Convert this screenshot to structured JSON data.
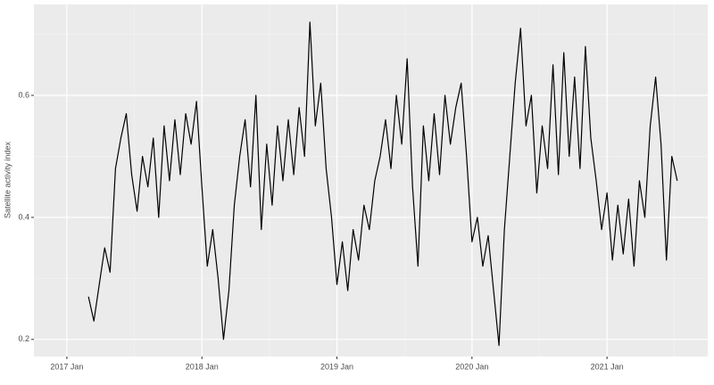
{
  "chart_data": {
    "type": "line",
    "ylabel": "Satellite activity index",
    "x": [
      2017.16,
      2017.2,
      2017.24,
      2017.28,
      2017.32,
      2017.36,
      2017.4,
      2017.44,
      2017.48,
      2017.52,
      2017.56,
      2017.6,
      2017.64,
      2017.68,
      2017.72,
      2017.76,
      2017.8,
      2017.84,
      2017.88,
      2017.92,
      2017.96,
      2018.0,
      2018.04,
      2018.08,
      2018.12,
      2018.16,
      2018.2,
      2018.24,
      2018.28,
      2018.32,
      2018.36,
      2018.4,
      2018.44,
      2018.48,
      2018.52,
      2018.56,
      2018.6,
      2018.64,
      2018.68,
      2018.72,
      2018.76,
      2018.8,
      2018.84,
      2018.88,
      2018.92,
      2018.96,
      2019.0,
      2019.04,
      2019.08,
      2019.12,
      2019.16,
      2019.2,
      2019.24,
      2019.28,
      2019.32,
      2019.36,
      2019.4,
      2019.44,
      2019.48,
      2019.52,
      2019.56,
      2019.6,
      2019.64,
      2019.68,
      2019.72,
      2019.76,
      2019.8,
      2019.84,
      2019.88,
      2019.92,
      2019.96,
      2020.0,
      2020.04,
      2020.08,
      2020.12,
      2020.16,
      2020.2,
      2020.24,
      2020.28,
      2020.32,
      2020.36,
      2020.4,
      2020.44,
      2020.48,
      2020.52,
      2020.56,
      2020.6,
      2020.64,
      2020.68,
      2020.72,
      2020.76,
      2020.8,
      2020.84,
      2020.88,
      2020.92,
      2020.96,
      2021.0,
      2021.04,
      2021.08,
      2021.12,
      2021.16,
      2021.2,
      2021.24,
      2021.28,
      2021.32,
      2021.36,
      2021.4,
      2021.44,
      2021.48,
      2021.52
    ],
    "series": [
      {
        "color": "#000000",
        "values": [
          0.27,
          0.23,
          0.29,
          0.35,
          0.31,
          0.48,
          0.53,
          0.57,
          0.47,
          0.41,
          0.5,
          0.45,
          0.53,
          0.4,
          0.55,
          0.46,
          0.56,
          0.47,
          0.57,
          0.52,
          0.59,
          0.45,
          0.32,
          0.38,
          0.3,
          0.2,
          0.28,
          0.42,
          0.5,
          0.56,
          0.45,
          0.6,
          0.38,
          0.52,
          0.42,
          0.55,
          0.46,
          0.56,
          0.47,
          0.58,
          0.5,
          0.72,
          0.55,
          0.62,
          0.48,
          0.4,
          0.29,
          0.36,
          0.28,
          0.38,
          0.33,
          0.42,
          0.38,
          0.46,
          0.5,
          0.56,
          0.48,
          0.6,
          0.52,
          0.66,
          0.45,
          0.32,
          0.55,
          0.46,
          0.57,
          0.47,
          0.6,
          0.52,
          0.58,
          0.62,
          0.5,
          0.36,
          0.4,
          0.32,
          0.37,
          0.28,
          0.19,
          0.38,
          0.5,
          0.62,
          0.71,
          0.55,
          0.6,
          0.44,
          0.55,
          0.48,
          0.65,
          0.47,
          0.67,
          0.5,
          0.63,
          0.48,
          0.68,
          0.53,
          0.46,
          0.38,
          0.44,
          0.33,
          0.42,
          0.34,
          0.43,
          0.32,
          0.46,
          0.4,
          0.55,
          0.63,
          0.52,
          0.33,
          0.5,
          0.46
        ]
      }
    ],
    "xlim": [
      2016.756,
      2021.746
    ],
    "xticks": [
      {
        "value": 2017,
        "label": "2017 Jan"
      },
      {
        "value": 2018,
        "label": "2018 Jan"
      },
      {
        "value": 2019,
        "label": "2019 Jan"
      },
      {
        "value": 2020,
        "label": "2020 Jan"
      },
      {
        "value": 2021,
        "label": "2021 Jan"
      }
    ],
    "ylim": [
      0.172,
      0.749
    ],
    "yticks": [
      0.2,
      0.4,
      0.6
    ],
    "grid": true
  }
}
